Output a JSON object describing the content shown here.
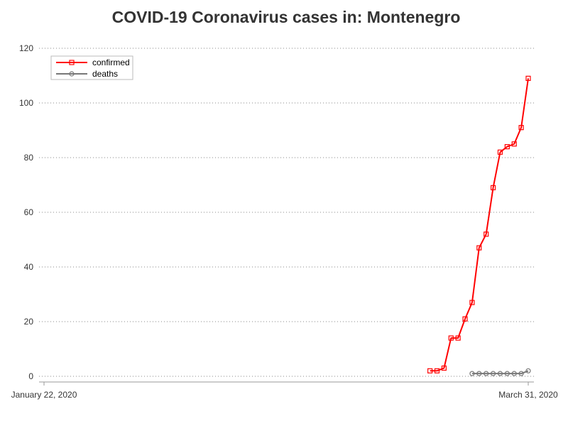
{
  "chart_data": {
    "type": "line",
    "title": "COVID-19 Coronavirus cases in: Montenegro",
    "xlabel": "",
    "ylabel": "",
    "x_start": "2020-01-22",
    "x_end": "2020-03-31",
    "x_tick_labels": [
      "January 22, 2020",
      "March 31, 2020"
    ],
    "ylim": [
      0,
      120
    ],
    "y_ticks": [
      0,
      20,
      40,
      60,
      80,
      100,
      120
    ],
    "grid": "horizontal-dotted",
    "legend_position": "top-left",
    "series": [
      {
        "name": "confirmed",
        "color": "#ff0000",
        "marker": "square",
        "points": [
          {
            "x": "2020-03-17",
            "y": 2
          },
          {
            "x": "2020-03-18",
            "y": 2
          },
          {
            "x": "2020-03-19",
            "y": 3
          },
          {
            "x": "2020-03-20",
            "y": 14
          },
          {
            "x": "2020-03-21",
            "y": 14
          },
          {
            "x": "2020-03-22",
            "y": 21
          },
          {
            "x": "2020-03-23",
            "y": 27
          },
          {
            "x": "2020-03-24",
            "y": 47
          },
          {
            "x": "2020-03-25",
            "y": 52
          },
          {
            "x": "2020-03-26",
            "y": 69
          },
          {
            "x": "2020-03-27",
            "y": 82
          },
          {
            "x": "2020-03-28",
            "y": 84
          },
          {
            "x": "2020-03-29",
            "y": 85
          },
          {
            "x": "2020-03-30",
            "y": 91
          },
          {
            "x": "2020-03-31",
            "y": 109
          }
        ]
      },
      {
        "name": "deaths",
        "color": "#777777",
        "marker": "circle",
        "points": [
          {
            "x": "2020-03-23",
            "y": 1
          },
          {
            "x": "2020-03-24",
            "y": 1
          },
          {
            "x": "2020-03-25",
            "y": 1
          },
          {
            "x": "2020-03-26",
            "y": 1
          },
          {
            "x": "2020-03-27",
            "y": 1
          },
          {
            "x": "2020-03-28",
            "y": 1
          },
          {
            "x": "2020-03-29",
            "y": 1
          },
          {
            "x": "2020-03-30",
            "y": 1
          },
          {
            "x": "2020-03-31",
            "y": 2
          }
        ]
      }
    ]
  }
}
